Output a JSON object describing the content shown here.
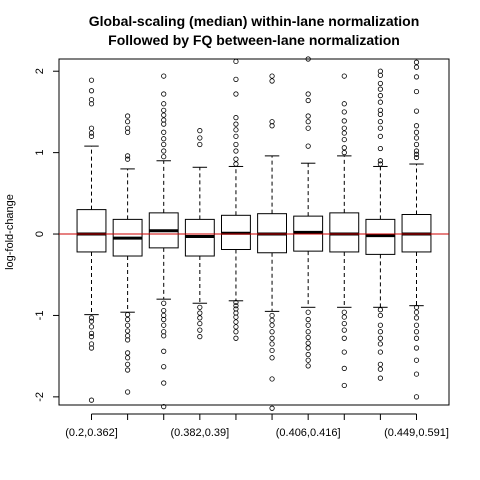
{
  "chart_data": {
    "type": "box",
    "title_lines": [
      "Global-scaling (median) within-lane normalization",
      "Followed by FQ between-lane normalization"
    ],
    "ylabel": "log-fold-change",
    "xlabel": "",
    "ylim": [
      -2.1,
      2.15
    ],
    "yticks": [
      -2,
      -1,
      0,
      1,
      2
    ],
    "reference_line": {
      "y": 0,
      "color": "#cc0000"
    },
    "x_tick_labels_shown": [
      "(0.2,0.362]",
      "(0.382,0.39]",
      "(0.406,0.416]",
      "(0.449,0.591]"
    ],
    "x_tick_label_positions": [
      1,
      4,
      7,
      10
    ],
    "boxes": [
      {
        "q1": -0.22,
        "median": 0.0,
        "q3": 0.3,
        "whisker_low": -0.99,
        "whisker_high": 1.08,
        "outliers": [
          1.89,
          1.76,
          1.65,
          1.6,
          1.3,
          1.24,
          1.2,
          -1.03,
          -1.07,
          -1.14,
          -1.22,
          -1.26,
          -1.35,
          -1.4,
          -2.04
        ]
      },
      {
        "q1": -0.27,
        "median": -0.05,
        "q3": 0.18,
        "whisker_low": -0.96,
        "whisker_high": 0.8,
        "outliers": [
          1.45,
          1.38,
          1.3,
          1.25,
          0.96,
          0.92,
          -0.99,
          -1.05,
          -1.12,
          -1.19,
          -1.25,
          -1.3,
          -1.46,
          -1.52,
          -1.6,
          -1.67,
          -1.94
        ]
      },
      {
        "q1": -0.17,
        "median": 0.04,
        "q3": 0.26,
        "whisker_low": -0.8,
        "whisker_high": 0.9,
        "outliers": [
          1.94,
          1.72,
          1.6,
          1.52,
          1.46,
          1.4,
          1.35,
          1.25,
          1.17,
          1.1,
          1.02,
          0.95,
          -0.85,
          -0.94,
          -1.0,
          -1.05,
          -1.12,
          -1.2,
          -1.25,
          -1.44,
          -1.63,
          -1.83,
          -2.12
        ]
      },
      {
        "q1": -0.27,
        "median": -0.03,
        "q3": 0.18,
        "whisker_low": -0.85,
        "whisker_high": 0.82,
        "outliers": [
          1.27,
          1.18,
          1.1,
          -0.9,
          -0.97,
          -1.03,
          -1.1,
          -1.18,
          -1.26
        ]
      },
      {
        "q1": -0.19,
        "median": 0.01,
        "q3": 0.23,
        "whisker_low": -0.82,
        "whisker_high": 0.83,
        "outliers": [
          2.12,
          1.9,
          1.72,
          1.43,
          1.35,
          1.28,
          1.2,
          1.1,
          1.02,
          0.92,
          0.86,
          -0.84,
          -0.88,
          -0.92,
          -0.97,
          -1.02,
          -1.08,
          -1.14,
          -1.2,
          -1.28
        ]
      },
      {
        "q1": -0.23,
        "median": 0.0,
        "q3": 0.25,
        "whisker_low": -0.95,
        "whisker_high": 0.96,
        "outliers": [
          1.94,
          1.88,
          1.38,
          1.33,
          -1.0,
          -1.06,
          -1.12,
          -1.2,
          -1.28,
          -1.35,
          -1.43,
          -1.52,
          -1.78,
          -2.14
        ]
      },
      {
        "q1": -0.21,
        "median": 0.02,
        "q3": 0.22,
        "whisker_low": -0.9,
        "whisker_high": 0.87,
        "outliers": [
          2.15,
          1.72,
          1.64,
          1.45,
          1.38,
          1.3,
          1.08,
          -0.96,
          -1.05,
          -1.12,
          -1.2,
          -1.27,
          -1.34,
          -1.4,
          -1.48,
          -1.55,
          -1.62
        ]
      },
      {
        "q1": -0.22,
        "median": 0.0,
        "q3": 0.26,
        "whisker_low": -0.9,
        "whisker_high": 0.96,
        "outliers": [
          1.94,
          1.6,
          1.5,
          1.39,
          1.3,
          1.24,
          1.16,
          1.06,
          1.0,
          -0.96,
          -1.02,
          -1.1,
          -1.18,
          -1.28,
          -1.45,
          -1.65,
          -1.86
        ]
      },
      {
        "q1": -0.25,
        "median": -0.02,
        "q3": 0.18,
        "whisker_low": -0.9,
        "whisker_high": 0.83,
        "outliers": [
          2.0,
          1.95,
          1.85,
          1.78,
          1.7,
          1.62,
          1.52,
          1.47,
          1.38,
          1.3,
          1.2,
          1.05,
          0.9,
          0.86,
          -0.93,
          -1.0,
          -1.12,
          -1.2,
          -1.28,
          -1.35,
          -1.45,
          -1.6,
          -1.66,
          -1.77
        ]
      },
      {
        "q1": -0.22,
        "median": 0.0,
        "q3": 0.24,
        "whisker_low": -0.88,
        "whisker_high": 0.86,
        "outliers": [
          2.11,
          2.05,
          1.93,
          1.75,
          1.51,
          1.33,
          1.25,
          1.18,
          1.1,
          1.02,
          0.98,
          0.94,
          -0.9,
          -0.96,
          -1.03,
          -1.12,
          -1.2,
          -1.28,
          -1.4,
          -1.55,
          -1.72,
          -2.0
        ]
      }
    ]
  }
}
